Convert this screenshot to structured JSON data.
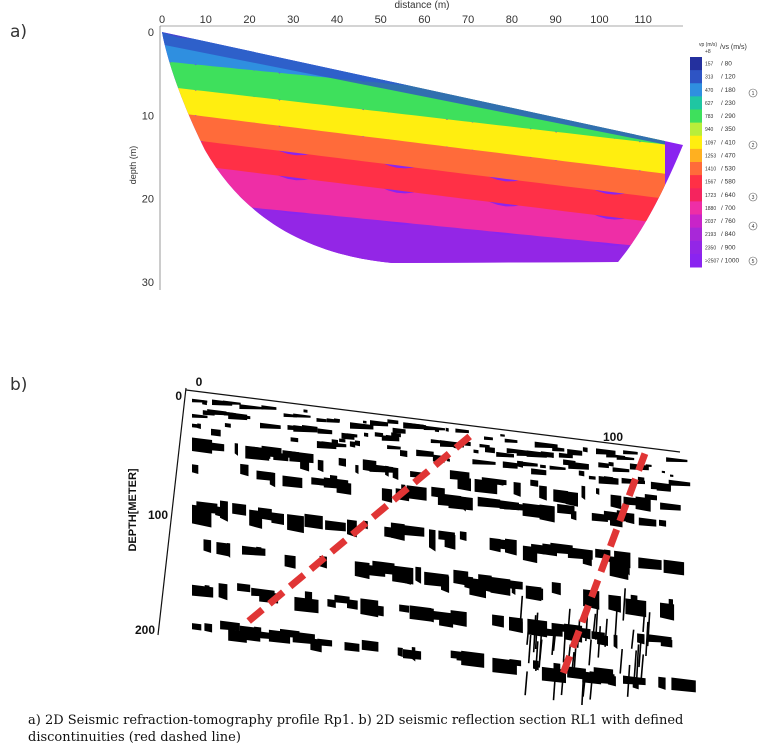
{
  "panel_a": {
    "label": "a)",
    "chart_data": {
      "type": "heatmap",
      "title": "",
      "xlabel": "distance (m)",
      "ylabel": "depth (m)",
      "x_ticks": [
        "0",
        "10",
        "20",
        "30",
        "40",
        "50",
        "60",
        "70",
        "80",
        "90",
        "100",
        "110"
      ],
      "y_ticks": [
        "0",
        "10",
        "20",
        "30"
      ],
      "xlim": [
        0,
        115
      ],
      "ylim": [
        0,
        30
      ],
      "colorbar": {
        "header_vp": "vp (m/s)",
        "header_vs": "/vs (m/s)",
        "header_plus": "+8",
        "entries": [
          {
            "vp": "157",
            "vs": "/ 80",
            "color": "#24309e"
          },
          {
            "vp": "313",
            "vs": "/ 120",
            "color": "#2e54c4"
          },
          {
            "vp": "470",
            "vs": "/ 180",
            "color": "#2f8fe0"
          },
          {
            "vp": "627",
            "vs": "/ 230",
            "color": "#1fc6a2"
          },
          {
            "vp": "783",
            "vs": "/ 290",
            "color": "#3ee05c"
          },
          {
            "vp": "940",
            "vs": "/ 350",
            "color": "#b8ee3a"
          },
          {
            "vp": "1097",
            "vs": "/ 410",
            "color": "#ffee10"
          },
          {
            "vp": "1253",
            "vs": "/ 470",
            "color": "#ffb020"
          },
          {
            "vp": "1410",
            "vs": "/ 530",
            "color": "#ff6b3a"
          },
          {
            "vp": "1567",
            "vs": "/ 580",
            "color": "#ff3046"
          },
          {
            "vp": "1723",
            "vs": "/ 640",
            "color": "#f5245e"
          },
          {
            "vp": "1880",
            "vs": "/ 700",
            "color": "#ee2ea6"
          },
          {
            "vp": "2037",
            "vs": "/ 760",
            "color": "#c824c8"
          },
          {
            "vp": "2193",
            "vs": "/ 840",
            "color": "#a828d8"
          },
          {
            "vp": "2350",
            "vs": "/ 900",
            "color": "#9326e6"
          },
          {
            "vp": ">2507",
            "vs": "/ 1000",
            "color": "#8a24f0"
          }
        ],
        "markers": [
          "1",
          "2",
          "3",
          "4",
          "5"
        ]
      },
      "layers": [
        {
          "velocity_vp": "157–627",
          "color": "#2f8fe0"
        },
        {
          "velocity_vp": "627–940",
          "color": "#3ee05c"
        },
        {
          "velocity_vp": "940–1097",
          "color": "#ffee10"
        },
        {
          "velocity_vp": "1253–1410",
          "color": "#ff6b3a"
        },
        {
          "velocity_vp": "1567–1723",
          "color": "#ff3046"
        },
        {
          "velocity_vp": "1880–2037",
          "color": "#ee2ea6"
        },
        {
          "velocity_vp": ">2193",
          "color": "#9326e6"
        }
      ]
    }
  },
  "panel_b": {
    "label": "b)",
    "chart_data": {
      "type": "scatter",
      "title": "",
      "ylabel": "DEPTH[METER]",
      "x_ticks": [
        "0",
        "100"
      ],
      "y_ticks": [
        "0",
        "100",
        "200"
      ],
      "discontinuity_color": "#e03535",
      "discontinuities": [
        {
          "x": [
            70,
            20
          ],
          "y": [
            30,
            190
          ]
        },
        {
          "x": [
            113,
            98
          ],
          "y": [
            40,
            225
          ]
        }
      ]
    }
  },
  "caption": "a) 2D Seismic refraction-tomography profile Rp1. b) 2D seismic reflection section RL1 with defined discontinuities (red dashed line)"
}
